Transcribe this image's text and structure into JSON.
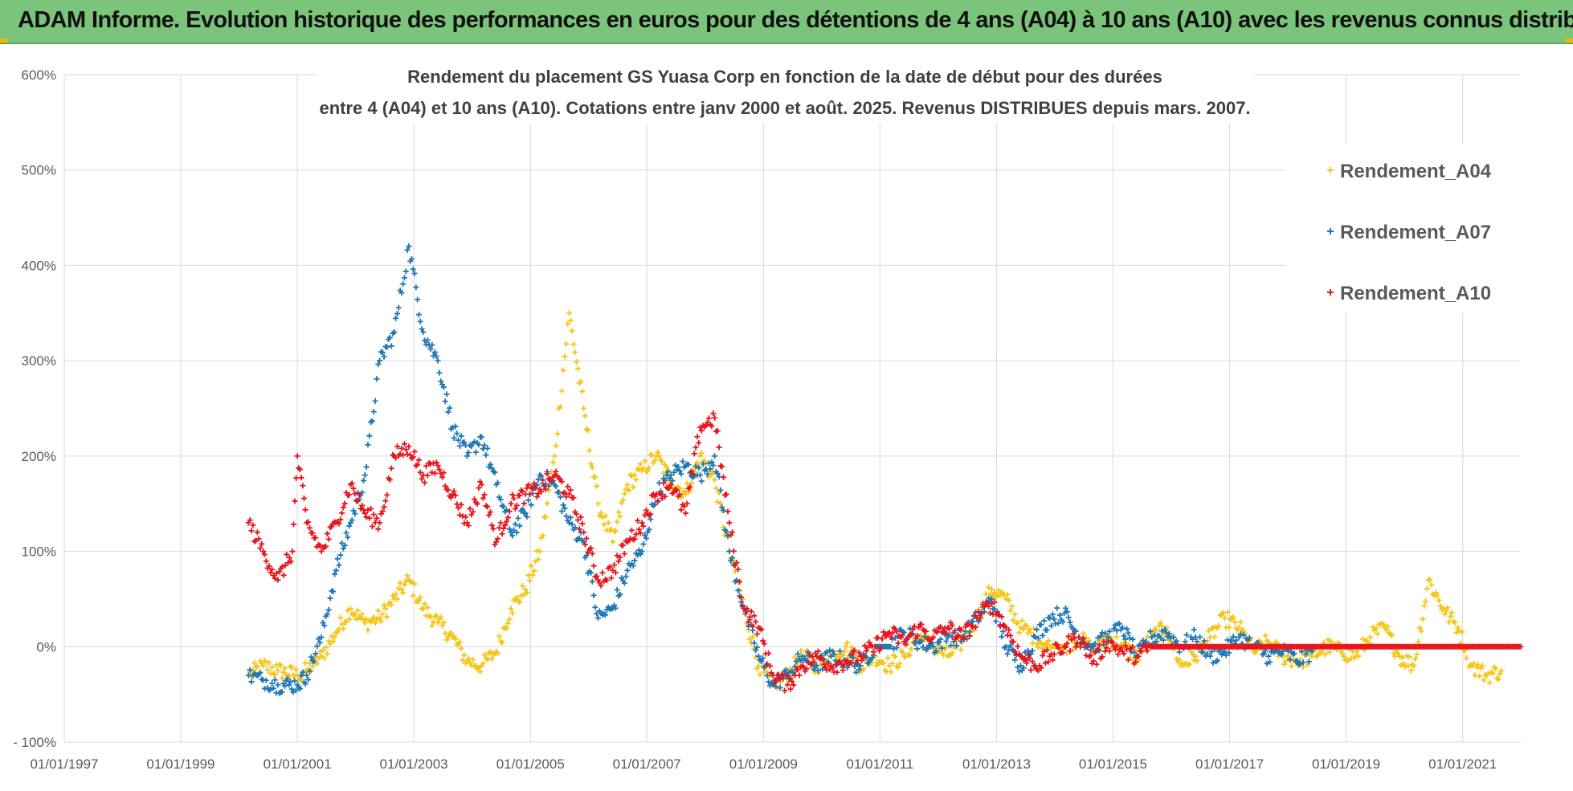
{
  "header": {
    "text": "ADAM Informe. Evolution historique des performances en euros pour des détentions de 4 ans (A04) à 10 ans (A10) avec les revenus connus distribués"
  },
  "colors": {
    "banner": "#7bc47b",
    "A04": "#f5c518",
    "A07": "#1f77b4",
    "A10": "#e8141c",
    "grid": "#d9d9d9"
  },
  "chart_data": {
    "type": "scatter",
    "title_line1": "Rendement du placement GS Yuasa Corp en fonction de la date de début pour des durées",
    "title_line2": "entre 4 (A04) et 10 ans (A10). Cotations entre janv 2000 et août. 2025. Revenus DISTRIBUES depuis mars. 2007.",
    "xlabel": "",
    "ylabel": "",
    "x_range": [
      "1997-01-01",
      "2021-12-31"
    ],
    "y_range": [
      -100,
      600
    ],
    "y_unit": "%",
    "x_ticks": [
      "01/01/1997",
      "01/01/1999",
      "01/01/2001",
      "01/01/2003",
      "01/01/2005",
      "01/01/2007",
      "01/01/2009",
      "01/01/2011",
      "01/01/2013",
      "01/01/2015",
      "01/01/2017",
      "01/01/2019",
      "01/01/2021"
    ],
    "y_ticks": [
      "- 100%",
      "0%",
      "100%",
      "200%",
      "300%",
      "400%",
      "500%",
      "600%"
    ],
    "grid": true,
    "legend": "top-right",
    "series": [
      {
        "name": "Rendement_A04",
        "points": [
          [
            "2000-03-01",
            -30
          ],
          [
            "2000-06-01",
            -20
          ],
          [
            "2000-09-01",
            -25
          ],
          [
            "2001-01-01",
            -30
          ],
          [
            "2001-03-01",
            -25
          ],
          [
            "2001-06-01",
            -10
          ],
          [
            "2001-09-01",
            15
          ],
          [
            "2001-12-01",
            40
          ],
          [
            "2002-03-01",
            25
          ],
          [
            "2002-06-01",
            30
          ],
          [
            "2002-09-01",
            50
          ],
          [
            "2002-12-01",
            70
          ],
          [
            "2003-03-01",
            40
          ],
          [
            "2003-06-01",
            25
          ],
          [
            "2003-09-01",
            10
          ],
          [
            "2003-12-01",
            -15
          ],
          [
            "2004-03-01",
            -20
          ],
          [
            "2004-06-01",
            -5
          ],
          [
            "2004-09-01",
            40
          ],
          [
            "2004-12-01",
            60
          ],
          [
            "2005-03-01",
            100
          ],
          [
            "2005-06-01",
            200
          ],
          [
            "2005-09-01",
            350
          ],
          [
            "2005-12-01",
            250
          ],
          [
            "2006-03-01",
            150
          ],
          [
            "2006-06-01",
            110
          ],
          [
            "2006-09-01",
            170
          ],
          [
            "2006-12-01",
            185
          ],
          [
            "2007-03-01",
            200
          ],
          [
            "2007-06-01",
            175
          ],
          [
            "2007-09-01",
            160
          ],
          [
            "2007-12-01",
            200
          ],
          [
            "2008-03-01",
            175
          ],
          [
            "2008-06-01",
            100
          ],
          [
            "2008-09-01",
            40
          ],
          [
            "2008-12-01",
            -20
          ],
          [
            "2009-03-01",
            -40
          ],
          [
            "2009-06-01",
            -30
          ],
          [
            "2009-09-01",
            -10
          ],
          [
            "2009-12-01",
            -20
          ],
          [
            "2010-03-01",
            -10
          ],
          [
            "2010-06-01",
            0
          ],
          [
            "2010-09-01",
            -20
          ],
          [
            "2010-12-01",
            -10
          ],
          [
            "2011-03-01",
            -20
          ],
          [
            "2011-06-01",
            -10
          ],
          [
            "2011-09-01",
            10
          ],
          [
            "2011-12-01",
            0
          ],
          [
            "2012-03-01",
            -10
          ],
          [
            "2012-06-01",
            5
          ],
          [
            "2012-09-01",
            30
          ],
          [
            "2012-12-01",
            60
          ],
          [
            "2013-03-01",
            50
          ],
          [
            "2013-06-01",
            20
          ],
          [
            "2013-09-01",
            10
          ],
          [
            "2013-12-01",
            0
          ],
          [
            "2014-03-01",
            0
          ],
          [
            "2014-06-01",
            10
          ],
          [
            "2014-09-01",
            -5
          ],
          [
            "2014-12-01",
            10
          ],
          [
            "2015-03-01",
            0
          ],
          [
            "2015-06-01",
            -10
          ],
          [
            "2015-09-01",
            10
          ],
          [
            "2015-12-01",
            20
          ],
          [
            "2016-03-01",
            -20
          ],
          [
            "2016-06-01",
            -10
          ],
          [
            "2016-09-01",
            10
          ],
          [
            "2016-12-01",
            30
          ],
          [
            "2017-03-01",
            20
          ],
          [
            "2017-06-01",
            -5
          ],
          [
            "2017-09-01",
            5
          ],
          [
            "2017-12-01",
            -10
          ],
          [
            "2018-03-01",
            -15
          ],
          [
            "2018-06-01",
            -10
          ],
          [
            "2018-09-01",
            0
          ],
          [
            "2018-12-01",
            -5
          ],
          [
            "2019-03-01",
            -10
          ],
          [
            "2019-06-01",
            10
          ],
          [
            "2019-09-01",
            20
          ],
          [
            "2019-12-01",
            -10
          ],
          [
            "2020-03-01",
            -20
          ],
          [
            "2020-06-01",
            70
          ],
          [
            "2020-09-01",
            40
          ],
          [
            "2020-12-01",
            20
          ],
          [
            "2021-03-01",
            -20
          ],
          [
            "2021-06-01",
            -30
          ],
          [
            "2021-09-01",
            -25
          ]
        ]
      },
      {
        "name": "Rendement_A07",
        "points": [
          [
            "2000-03-01",
            -30
          ],
          [
            "2000-06-01",
            -35
          ],
          [
            "2000-09-01",
            -40
          ],
          [
            "2001-01-01",
            -40
          ],
          [
            "2001-03-01",
            -30
          ],
          [
            "2001-06-01",
            10
          ],
          [
            "2001-09-01",
            80
          ],
          [
            "2001-12-01",
            130
          ],
          [
            "2002-03-01",
            180
          ],
          [
            "2002-06-01",
            300
          ],
          [
            "2002-09-01",
            330
          ],
          [
            "2002-12-01",
            420
          ],
          [
            "2003-03-01",
            330
          ],
          [
            "2003-06-01",
            300
          ],
          [
            "2003-09-01",
            230
          ],
          [
            "2003-12-01",
            200
          ],
          [
            "2004-03-01",
            220
          ],
          [
            "2004-06-01",
            170
          ],
          [
            "2004-09-01",
            120
          ],
          [
            "2004-12-01",
            140
          ],
          [
            "2005-03-01",
            180
          ],
          [
            "2005-06-01",
            170
          ],
          [
            "2005-09-01",
            130
          ],
          [
            "2005-12-01",
            110
          ],
          [
            "2006-03-01",
            30
          ],
          [
            "2006-06-01",
            40
          ],
          [
            "2006-09-01",
            80
          ],
          [
            "2006-12-01",
            100
          ],
          [
            "2007-03-01",
            160
          ],
          [
            "2007-06-01",
            180
          ],
          [
            "2007-09-01",
            190
          ],
          [
            "2007-12-01",
            180
          ],
          [
            "2008-03-01",
            200
          ],
          [
            "2008-06-01",
            100
          ],
          [
            "2008-09-01",
            40
          ],
          [
            "2008-12-01",
            -10
          ],
          [
            "2009-03-01",
            -40
          ],
          [
            "2009-06-01",
            -30
          ],
          [
            "2009-09-01",
            -10
          ],
          [
            "2009-12-01",
            -20
          ],
          [
            "2010-03-01",
            -10
          ],
          [
            "2010-06-01",
            -15
          ],
          [
            "2010-09-01",
            -20
          ],
          [
            "2010-12-01",
            0
          ],
          [
            "2011-03-01",
            0
          ],
          [
            "2011-06-01",
            15
          ],
          [
            "2011-09-01",
            5
          ],
          [
            "2011-12-01",
            0
          ],
          [
            "2012-03-01",
            10
          ],
          [
            "2012-06-01",
            10
          ],
          [
            "2012-09-01",
            30
          ],
          [
            "2012-12-01",
            50
          ],
          [
            "2013-03-01",
            0
          ],
          [
            "2013-06-01",
            -20
          ],
          [
            "2013-09-01",
            10
          ],
          [
            "2013-12-01",
            30
          ],
          [
            "2014-03-01",
            35
          ],
          [
            "2014-06-01",
            10
          ],
          [
            "2014-09-01",
            0
          ],
          [
            "2014-12-01",
            10
          ],
          [
            "2015-03-01",
            20
          ],
          [
            "2015-06-01",
            -10
          ],
          [
            "2015-09-01",
            10
          ],
          [
            "2015-12-01",
            15
          ],
          [
            "2016-03-01",
            0
          ],
          [
            "2016-06-01",
            10
          ],
          [
            "2016-09-01",
            -10
          ],
          [
            "2016-12-01",
            -5
          ],
          [
            "2017-03-01",
            10
          ],
          [
            "2017-06-01",
            0
          ],
          [
            "2017-09-01",
            -10
          ],
          [
            "2017-12-01",
            -5
          ],
          [
            "2018-03-01",
            -15
          ],
          [
            "2018-06-01",
            -5
          ]
        ]
      },
      {
        "name": "Rendement_A10",
        "points": [
          [
            "2000-03-01",
            130
          ],
          [
            "2000-06-01",
            100
          ],
          [
            "2000-09-01",
            70
          ],
          [
            "2000-12-01",
            100
          ],
          [
            "2001-01-01",
            200
          ],
          [
            "2001-03-01",
            130
          ],
          [
            "2001-06-01",
            100
          ],
          [
            "2001-09-01",
            130
          ],
          [
            "2001-12-01",
            170
          ],
          [
            "2002-03-01",
            140
          ],
          [
            "2002-06-01",
            130
          ],
          [
            "2002-09-01",
            200
          ],
          [
            "2002-12-01",
            210
          ],
          [
            "2003-03-01",
            180
          ],
          [
            "2003-06-01",
            190
          ],
          [
            "2003-09-01",
            160
          ],
          [
            "2003-12-01",
            130
          ],
          [
            "2004-03-01",
            170
          ],
          [
            "2004-06-01",
            110
          ],
          [
            "2004-09-01",
            150
          ],
          [
            "2004-12-01",
            160
          ],
          [
            "2005-03-01",
            165
          ],
          [
            "2005-06-01",
            180
          ],
          [
            "2005-09-01",
            160
          ],
          [
            "2005-12-01",
            120
          ],
          [
            "2006-03-01",
            70
          ],
          [
            "2006-06-01",
            80
          ],
          [
            "2006-09-01",
            110
          ],
          [
            "2006-12-01",
            130
          ],
          [
            "2007-03-01",
            160
          ],
          [
            "2007-06-01",
            170
          ],
          [
            "2007-09-01",
            140
          ],
          [
            "2007-12-01",
            230
          ],
          [
            "2008-03-01",
            240
          ],
          [
            "2008-06-01",
            130
          ],
          [
            "2008-09-01",
            40
          ],
          [
            "2008-12-01",
            20
          ],
          [
            "2009-03-01",
            -30
          ],
          [
            "2009-06-01",
            -40
          ],
          [
            "2009-09-01",
            -20
          ],
          [
            "2009-12-01",
            -10
          ],
          [
            "2010-03-01",
            -20
          ],
          [
            "2010-06-01",
            -15
          ],
          [
            "2010-09-01",
            -10
          ],
          [
            "2010-12-01",
            0
          ],
          [
            "2011-03-01",
            15
          ],
          [
            "2011-06-01",
            5
          ],
          [
            "2011-09-01",
            20
          ],
          [
            "2011-12-01",
            10
          ],
          [
            "2012-03-01",
            20
          ],
          [
            "2012-06-01",
            10
          ],
          [
            "2012-09-01",
            30
          ],
          [
            "2012-12-01",
            45
          ],
          [
            "2013-03-01",
            20
          ],
          [
            "2013-06-01",
            -10
          ],
          [
            "2013-09-01",
            -20
          ],
          [
            "2013-12-01",
            -10
          ],
          [
            "2014-03-01",
            0
          ],
          [
            "2014-06-01",
            10
          ],
          [
            "2014-09-01",
            -15
          ],
          [
            "2014-12-01",
            5
          ],
          [
            "2015-03-01",
            -5
          ],
          [
            "2015-06-01",
            -10
          ],
          [
            "2015-09-01",
            0
          ],
          [
            "2016-01-01",
            0
          ],
          [
            "2017-01-01",
            0
          ],
          [
            "2018-01-01",
            0
          ],
          [
            "2019-01-01",
            0
          ],
          [
            "2020-01-01",
            0
          ],
          [
            "2021-01-01",
            0
          ],
          [
            "2021-12-31",
            0
          ]
        ]
      }
    ]
  }
}
